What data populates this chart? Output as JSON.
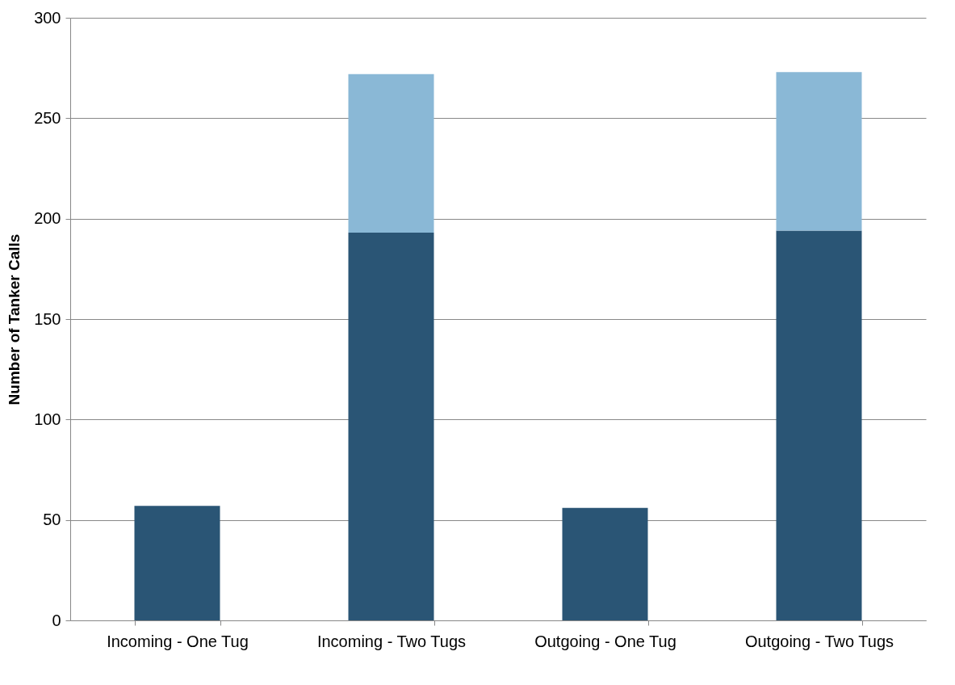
{
  "chart_data": {
    "type": "bar",
    "ylabel": "Number of Tanker Calls",
    "categories": [
      "Incoming - One Tug",
      "Incoming - Two Tugs",
      "Outgoing - One Tug",
      "Outgoing - Two Tugs"
    ],
    "series": [
      {
        "color": "#2a5575",
        "values": [
          57,
          193,
          56,
          194
        ]
      },
      {
        "color": "#8ab8d6",
        "values": [
          null,
          79,
          null,
          79
        ]
      }
    ],
    "stacked": true,
    "ylim": [
      0,
      300
    ],
    "yticks": [
      0,
      50,
      100,
      150,
      200,
      250,
      300
    ],
    "grid": "y"
  }
}
